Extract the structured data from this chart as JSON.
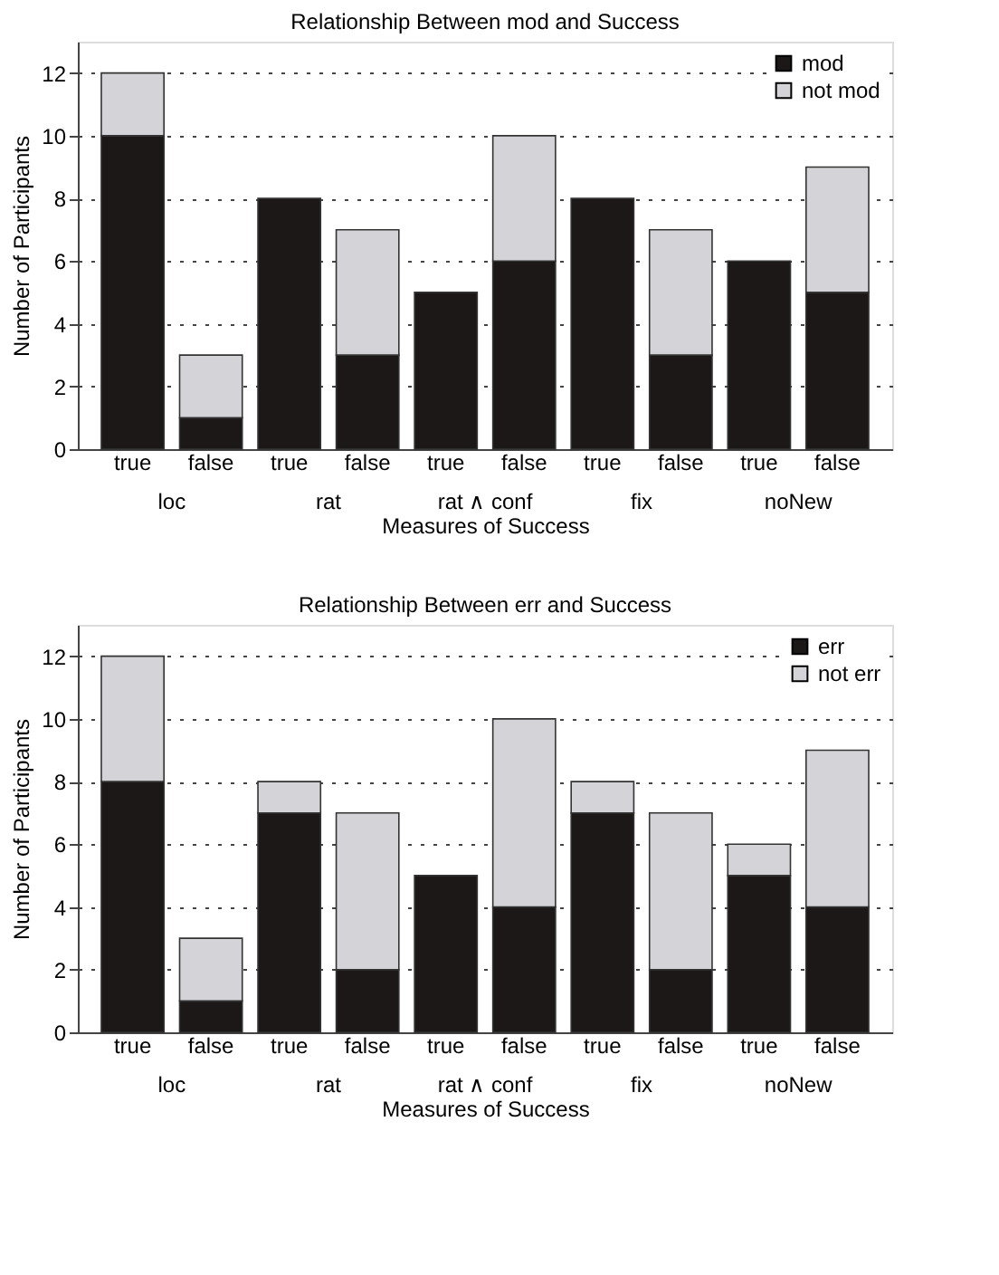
{
  "chart_data": [
    {
      "type": "bar",
      "title": "Relationship Between mod and Success",
      "xlabel": "Measures of Success",
      "ylabel": "Number of Participants",
      "categories": [
        "true",
        "false",
        "true",
        "false",
        "true",
        "false",
        "true",
        "false",
        "true",
        "false"
      ],
      "annotations": [
        "loc",
        "rat",
        "rat ∧ conf",
        "fix",
        "noNew"
      ],
      "stacked": true,
      "ylim": [
        0,
        13
      ],
      "yticks": [
        0,
        2,
        4,
        6,
        8,
        10,
        12
      ],
      "grid": "y",
      "legend": "top right",
      "series": [
        {
          "name": "mod",
          "color": "#1c1818",
          "values": [
            10,
            1,
            8,
            3,
            5,
            6,
            8,
            3,
            6,
            5
          ]
        },
        {
          "name": "not mod",
          "color": "#d4d4d8",
          "values": [
            2,
            2,
            0,
            4,
            0,
            4,
            0,
            4,
            0,
            4
          ]
        }
      ]
    },
    {
      "type": "bar",
      "title": "Relationship Between err and Success",
      "xlabel": "Measures of Success",
      "ylabel": "Number of Participants",
      "categories": [
        "true",
        "false",
        "true",
        "false",
        "true",
        "false",
        "true",
        "false",
        "true",
        "false"
      ],
      "annotations": [
        "loc",
        "rat",
        "rat ∧ conf",
        "fix",
        "noNew"
      ],
      "stacked": true,
      "ylim": [
        0,
        13
      ],
      "yticks": [
        0,
        2,
        4,
        6,
        8,
        10,
        12
      ],
      "grid": "y",
      "legend": "top right",
      "series": [
        {
          "name": "err",
          "color": "#1c1818",
          "values": [
            8,
            1,
            7,
            2,
            5,
            4,
            7,
            2,
            5,
            4
          ]
        },
        {
          "name": "not err",
          "color": "#d4d4d8",
          "values": [
            4,
            2,
            1,
            5,
            0,
            6,
            1,
            5,
            1,
            5
          ]
        }
      ]
    }
  ]
}
